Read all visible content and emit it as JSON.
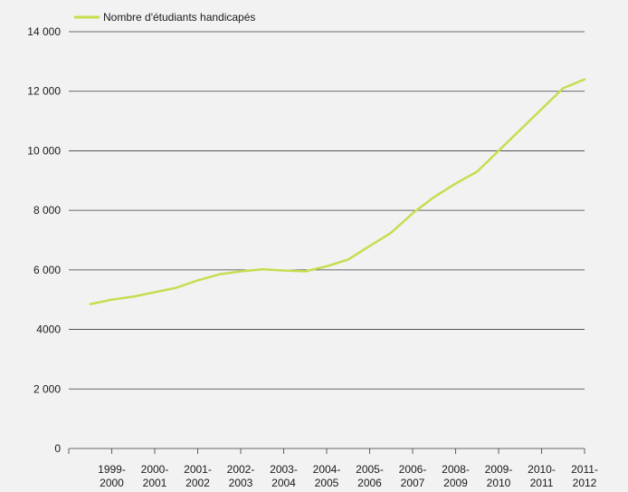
{
  "chart_data": {
    "type": "line",
    "title": "",
    "xlabel": "",
    "ylabel": "",
    "ylim": [
      0,
      14000
    ],
    "y_ticks": [
      0,
      2000,
      4000,
      6000,
      8000,
      10000,
      12000,
      14000
    ],
    "y_tick_labels": [
      "0",
      "2 000",
      "4000",
      "6 000",
      "8 000",
      "10 000",
      "12 000",
      "14 000"
    ],
    "x_tick_labels": [
      [
        "1999-",
        "2000"
      ],
      [
        "2000-",
        "2001"
      ],
      [
        "2001-",
        "2002"
      ],
      [
        "2002-",
        "2003"
      ],
      [
        "2003-",
        "2004"
      ],
      [
        "2004-",
        "2005"
      ],
      [
        "2005-",
        "2006"
      ],
      [
        "2006-",
        "2007"
      ],
      [
        "2008-",
        "2009"
      ],
      [
        "2009-",
        "2010"
      ],
      [
        "2010-",
        "2011"
      ],
      [
        "2011-",
        "2012"
      ]
    ],
    "grid": true,
    "legend_position": "top-left",
    "series": [
      {
        "name": "Nombre d'étudiants handicapés",
        "color": "#c8dc50",
        "x": [
          0,
          0.5,
          1,
          1.5,
          2,
          2.5,
          3,
          3.5,
          4,
          4.5,
          5,
          5.5,
          6,
          6.5,
          7,
          7.5,
          8,
          8.5,
          9,
          9.5,
          10,
          10.5,
          11,
          11.5
        ],
        "values": [
          4850,
          5000,
          5100,
          5250,
          5400,
          5650,
          5850,
          5950,
          6020,
          5980,
          5950,
          6120,
          6350,
          6800,
          7250,
          7900,
          8450,
          8900,
          9300,
          10000,
          10700,
          11400,
          12100,
          12400
        ]
      }
    ]
  }
}
